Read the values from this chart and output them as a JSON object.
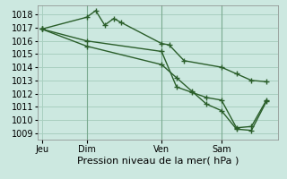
{
  "title": "Pression niveau de la mer( hPa )",
  "bg_color": "#cce8e0",
  "grid_color": "#a8cfc0",
  "line_color": "#2a5e2a",
  "ylim": [
    1008.5,
    1018.7
  ],
  "yticks": [
    1009,
    1010,
    1011,
    1012,
    1013,
    1014,
    1015,
    1016,
    1017,
    1018
  ],
  "xtick_positions": [
    0,
    3,
    8,
    12
  ],
  "xtick_labels": [
    "Jeu",
    "Dim",
    "Ven",
    "Sam"
  ],
  "line1_x": [
    0,
    3,
    3.6,
    4.2,
    4.8,
    5.3,
    8,
    8.5,
    9.5,
    12,
    13,
    14,
    15
  ],
  "line1_y": [
    1016.9,
    1017.8,
    1018.3,
    1017.2,
    1017.7,
    1017.4,
    1015.8,
    1015.7,
    1014.5,
    1014.0,
    1013.5,
    1013.0,
    1012.9
  ],
  "line2_x": [
    0,
    3,
    8,
    9,
    10,
    11,
    12,
    13,
    14,
    15
  ],
  "line2_y": [
    1016.9,
    1016.0,
    1015.2,
    1012.5,
    1012.1,
    1011.7,
    1011.5,
    1009.4,
    1009.5,
    1011.5
  ],
  "line3_x": [
    0,
    3,
    8,
    9,
    10,
    11,
    12,
    13,
    14,
    15
  ],
  "line3_y": [
    1016.9,
    1015.6,
    1014.2,
    1013.2,
    1012.2,
    1011.2,
    1010.7,
    1009.3,
    1009.2,
    1011.4
  ],
  "vlines_x": [
    3,
    8,
    12
  ],
  "marker": "+",
  "markersize": 4,
  "linewidth": 1.0,
  "title_fontsize": 8,
  "tick_fontsize": 7
}
